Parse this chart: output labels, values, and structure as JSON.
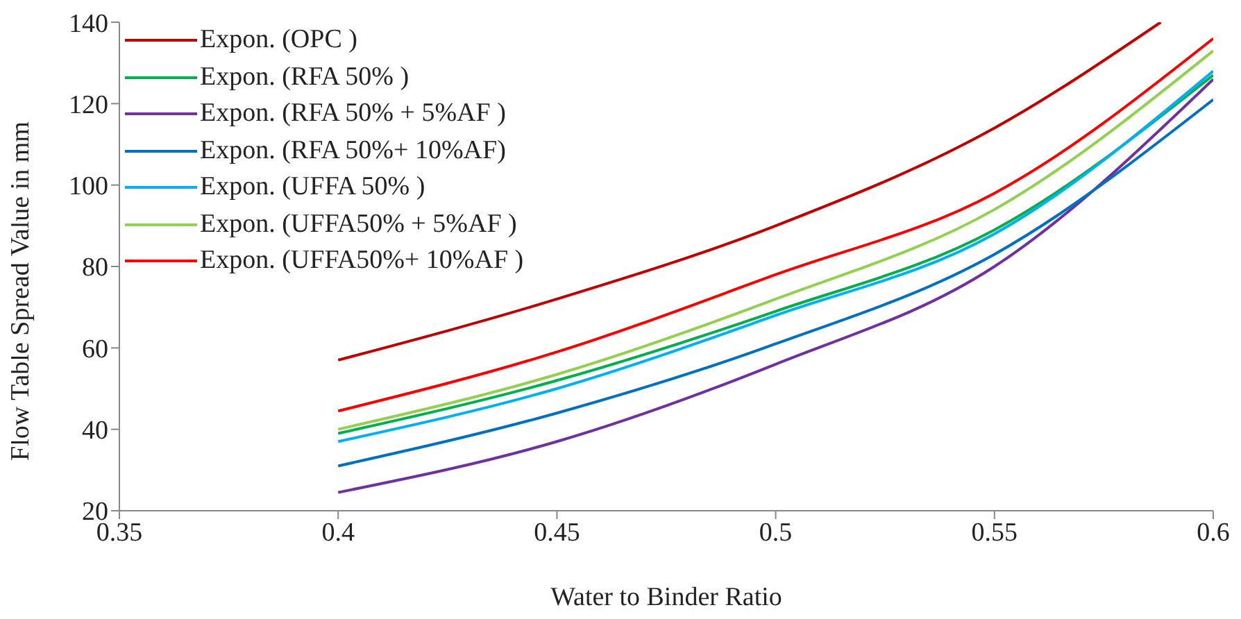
{
  "chart_data": {
    "type": "line",
    "xlabel": "Water to Binder Ratio",
    "ylabel": "Flow Table Spread Value in mm",
    "xlim": [
      0.35,
      0.6
    ],
    "xticks": [
      0.35,
      0.4,
      0.45,
      0.5,
      0.55,
      0.6
    ],
    "ylim": [
      20,
      140
    ],
    "yticks": [
      20,
      40,
      60,
      80,
      100,
      120,
      140
    ],
    "grid": false,
    "legend": "top left",
    "marker": "none",
    "line_style": "solid",
    "series": [
      {
        "name": "Expon. (OPC )",
        "color": "#c00000",
        "x": [
          0.4,
          0.45,
          0.5,
          0.55,
          0.588
        ],
        "values": [
          57,
          72,
          90,
          114,
          140
        ]
      },
      {
        "name": "Expon. (RFA 50% )",
        "color": "#00b050",
        "x": [
          0.4,
          0.45,
          0.5,
          0.55,
          0.6
        ],
        "values": [
          39,
          52,
          69,
          89,
          127
        ]
      },
      {
        "name": "Expon. (RFA 50% + 5%AF )",
        "color": "#7030a0",
        "x": [
          0.4,
          0.45,
          0.5,
          0.55,
          0.6
        ],
        "values": [
          24.5,
          37,
          56,
          80,
          126
        ]
      },
      {
        "name": "Expon. (RFA 50%+ 10%AF)",
        "color": "#0070c0",
        "x": [
          0.4,
          0.45,
          0.5,
          0.55,
          0.6
        ],
        "values": [
          31,
          44,
          61,
          83,
          121
        ]
      },
      {
        "name": "Expon. (UFFA 50% )",
        "color": "#00b0f0",
        "x": [
          0.4,
          0.45,
          0.5,
          0.55,
          0.6
        ],
        "values": [
          37,
          50,
          68,
          88,
          128
        ]
      },
      {
        "name": "Expon. (UFFA50% + 5%AF )",
        "color": "#92d050",
        "x": [
          0.4,
          0.45,
          0.5,
          0.55,
          0.6
        ],
        "values": [
          40,
          53.5,
          72,
          94,
          133
        ]
      },
      {
        "name": "Expon. (UFFA50%+ 10%AF )",
        "color": "#ff0000",
        "x": [
          0.4,
          0.45,
          0.5,
          0.55,
          0.6
        ],
        "values": [
          44.5,
          59,
          78,
          98,
          136
        ]
      }
    ]
  }
}
